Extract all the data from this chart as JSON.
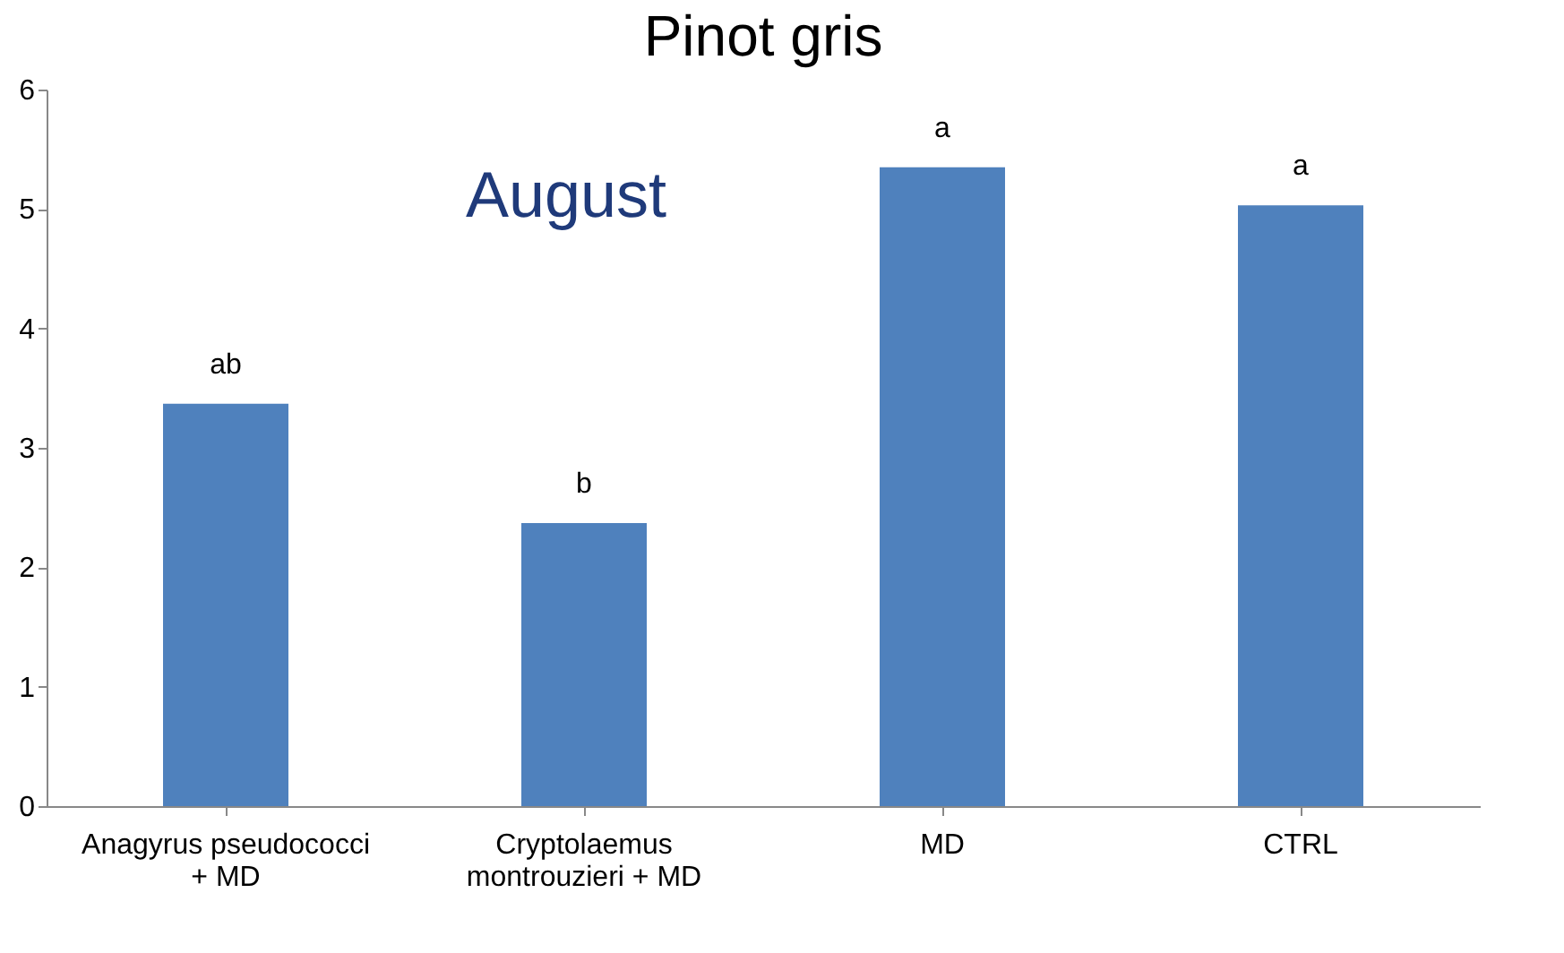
{
  "chart_data": {
    "type": "bar",
    "title": "Pinot gris",
    "categories": [
      "Anagyrus pseudococci + MD",
      "Cryptolaemus montrouzieri + MD",
      "MD",
      "CTRL"
    ],
    "values": [
      3.37,
      2.37,
      5.35,
      5.03
    ],
    "color": "#4f81bd",
    "ylim": [
      0,
      6
    ],
    "yticks": [
      0,
      1,
      2,
      3,
      4,
      5,
      6
    ],
    "grid": false,
    "annotations": [
      "August",
      {
        "text": "ab",
        "x": "Anagyrus pseudococci + MD",
        "y": 3.37
      },
      {
        "text": "b",
        "x": "Cryptolaemus montrouzieri + MD",
        "y": 2.37
      },
      {
        "text": "a",
        "x": "MD",
        "y": 5.35
      },
      {
        "text": "a",
        "x": "CTRL",
        "y": 5.03
      }
    ]
  }
}
